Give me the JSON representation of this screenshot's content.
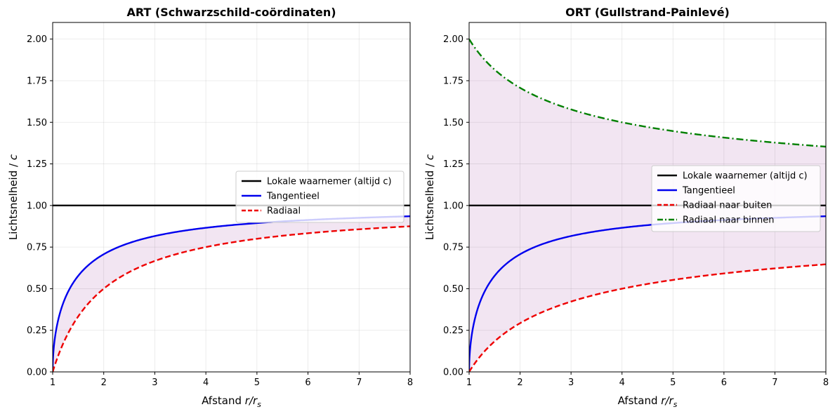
{
  "chart_data": [
    {
      "type": "line",
      "title": "ART (Schwarzschild-coördinaten)",
      "xlabel": "Afstand",
      "xlabel_var": "r/r",
      "xlabel_sub": "s",
      "ylabel": "Lichtsnelheid / ",
      "ylabel_var": "c",
      "xlim": [
        1,
        8
      ],
      "ylim": [
        0,
        2.1
      ],
      "xticks": [
        1,
        2,
        3,
        4,
        5,
        6,
        7,
        8
      ],
      "xtick_labels": [
        "1",
        "2",
        "3",
        "4",
        "5",
        "6",
        "7",
        "8"
      ],
      "yticks": [
        0,
        0.25,
        0.5,
        0.75,
        1.0,
        1.25,
        1.5,
        1.75,
        2.0
      ],
      "ytick_labels": [
        "0.00",
        "0.25",
        "0.50",
        "0.75",
        "1.00",
        "1.25",
        "1.50",
        "1.75",
        "2.00"
      ],
      "grid": true,
      "legend_position": "center-right",
      "series": [
        {
          "name": "Lokale waarnemer (altijd c)",
          "formula": "1",
          "color": "#000000",
          "style": "solid"
        },
        {
          "name": "Tangentieel",
          "formula": "sqrt(1 - 1/r)",
          "color": "#0000ee",
          "style": "solid"
        },
        {
          "name": "Radiaal",
          "formula": "1 - 1/r",
          "color": "#ee0000",
          "style": "dashed"
        }
      ],
      "fill_between": {
        "upper": "Tangentieel",
        "lower": "Radiaal",
        "color": "#800080",
        "alpha": 0.1
      },
      "sample_points": {
        "x": [
          1,
          1.5,
          2,
          3,
          4,
          5,
          6,
          7,
          8
        ],
        "Tangentieel": [
          0,
          0.577,
          0.707,
          0.816,
          0.866,
          0.894,
          0.913,
          0.926,
          0.935
        ],
        "Radiaal": [
          0,
          0.333,
          0.5,
          0.667,
          0.75,
          0.8,
          0.833,
          0.857,
          0.875
        ]
      }
    },
    {
      "type": "line",
      "title": "ORT (Gullstrand-Painlevé)",
      "xlabel": "Afstand",
      "xlabel_var": "r/r",
      "xlabel_sub": "s",
      "ylabel": "Lichtsnelheid / ",
      "ylabel_var": "c",
      "xlim": [
        1,
        8
      ],
      "ylim": [
        0,
        2.1
      ],
      "xticks": [
        1,
        2,
        3,
        4,
        5,
        6,
        7,
        8
      ],
      "xtick_labels": [
        "1",
        "2",
        "3",
        "4",
        "5",
        "6",
        "7",
        "8"
      ],
      "yticks": [
        0,
        0.25,
        0.5,
        0.75,
        1.0,
        1.25,
        1.5,
        1.75,
        2.0
      ],
      "ytick_labels": [
        "0.00",
        "0.25",
        "0.50",
        "0.75",
        "1.00",
        "1.25",
        "1.50",
        "1.75",
        "2.00"
      ],
      "grid": true,
      "legend_position": "center-right",
      "series": [
        {
          "name": "Lokale waarnemer (altijd c)",
          "formula": "1",
          "color": "#000000",
          "style": "solid"
        },
        {
          "name": "Tangentieel",
          "formula": "sqrt(1 - 1/r)",
          "color": "#0000ee",
          "style": "solid"
        },
        {
          "name": "Radiaal naar buiten",
          "formula": "1 - sqrt(1/r)",
          "color": "#ee0000",
          "style": "dashed"
        },
        {
          "name": "Radiaal naar binnen",
          "formula": "1 + sqrt(1/r)",
          "color": "#008000",
          "style": "dashdot"
        }
      ],
      "fill_between": {
        "upper": "Radiaal naar binnen",
        "lower": "Radiaal naar buiten",
        "color": "#800080",
        "alpha": 0.1
      },
      "sample_points": {
        "x": [
          1,
          2,
          3,
          4,
          5,
          6,
          7,
          8
        ],
        "Tangentieel": [
          0,
          0.707,
          0.816,
          0.866,
          0.894,
          0.913,
          0.926,
          0.935
        ],
        "Radiaal naar buiten": [
          0,
          0.293,
          0.423,
          0.5,
          0.553,
          0.592,
          0.622,
          0.646
        ],
        "Radiaal naar binnen": [
          2,
          1.707,
          1.577,
          1.5,
          1.447,
          1.408,
          1.378,
          1.354
        ]
      }
    }
  ]
}
